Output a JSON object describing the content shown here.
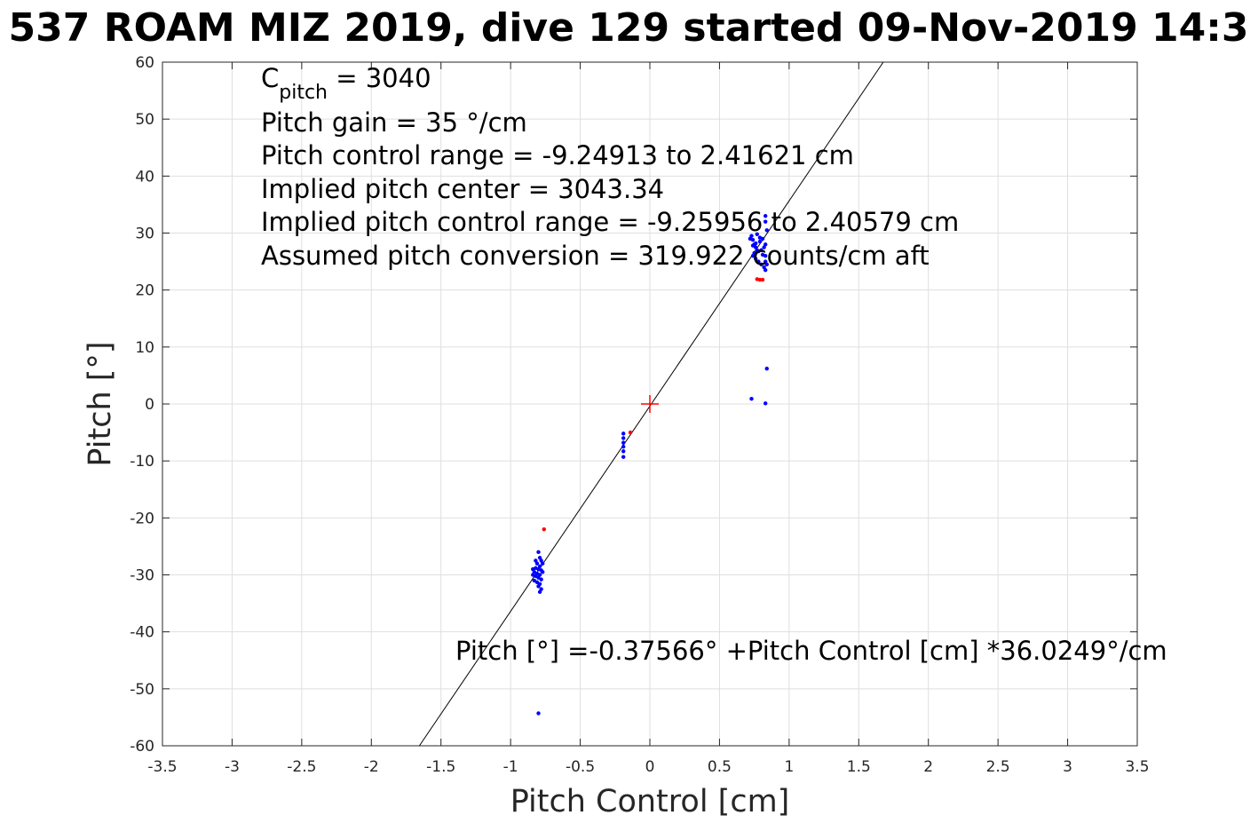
{
  "chart_data": {
    "type": "scatter",
    "title": "537 ROAM MIZ 2019, dive 129 started 09-Nov-2019 14:3",
    "xlabel": "Pitch Control [cm]",
    "ylabel": "Pitch [°]",
    "xlim": [
      -3.5,
      3.5
    ],
    "ylim": [
      -60,
      60
    ],
    "xticks": [
      -3.5,
      -3,
      -2.5,
      -2,
      -1.5,
      -1,
      -0.5,
      0,
      0.5,
      1,
      1.5,
      2,
      2.5,
      3,
      3.5
    ],
    "yticks": [
      -60,
      -50,
      -40,
      -30,
      -20,
      -10,
      0,
      10,
      20,
      30,
      40,
      50,
      60
    ],
    "grid": true,
    "colors": {
      "good": "#0000ff",
      "flagged": "#ff0000",
      "fit": "#000000",
      "center": "#ff0000"
    },
    "annotations": {
      "c_pitch_symbol": "C",
      "c_pitch_subscript": "pitch",
      "c_pitch_value": " = 3040",
      "lines": [
        "Pitch gain = 35 °/cm",
        "Pitch control range = -9.24913 to 2.41621 cm",
        "Implied pitch center = 3043.34",
        "Implied pitch control range = -9.25956 to 2.40579 cm",
        "Assumed pitch conversion = 319.922 counts/cm aft"
      ],
      "fit_equation": "Pitch [°] =-0.37566° +Pitch Control [cm] *36.0249°/cm"
    },
    "fit_line": {
      "intercept": -0.37566,
      "slope": 36.0249
    },
    "center_marker": {
      "x": 0,
      "y": 0
    },
    "series": [
      {
        "color": "#0000ff",
        "points": [
          [
            -0.8,
            -26.0
          ],
          [
            -0.79,
            -27.0
          ],
          [
            -0.78,
            -27.5
          ],
          [
            -0.81,
            -28.0
          ],
          [
            -0.79,
            -28.5
          ],
          [
            -0.82,
            -28.8
          ],
          [
            -0.8,
            -29.0
          ],
          [
            -0.78,
            -29.2
          ],
          [
            -0.83,
            -29.5
          ],
          [
            -0.81,
            -29.8
          ],
          [
            -0.79,
            -30.0
          ],
          [
            -0.82,
            -30.2
          ],
          [
            -0.8,
            -30.5
          ],
          [
            -0.78,
            -30.8
          ],
          [
            -0.83,
            -31.0
          ],
          [
            -0.81,
            -31.3
          ],
          [
            -0.79,
            -31.6
          ],
          [
            -0.8,
            -32.0
          ],
          [
            -0.78,
            -32.5
          ],
          [
            -0.79,
            -33.0
          ],
          [
            -0.84,
            -29.0
          ],
          [
            -0.84,
            -30.0
          ],
          [
            -0.77,
            -28.0
          ],
          [
            -0.77,
            -29.5
          ],
          [
            -0.82,
            -27.5
          ],
          [
            -0.8,
            -54.3
          ],
          [
            -0.19,
            -5.2
          ],
          [
            -0.19,
            -6.0
          ],
          [
            -0.19,
            -6.8
          ],
          [
            -0.19,
            -7.5
          ],
          [
            -0.19,
            -8.3
          ],
          [
            -0.19,
            -9.3
          ],
          [
            0.73,
            29.5
          ],
          [
            0.74,
            28.8
          ],
          [
            0.75,
            28.0
          ],
          [
            0.76,
            27.5
          ],
          [
            0.77,
            27.0
          ],
          [
            0.75,
            26.5
          ],
          [
            0.74,
            26.0
          ],
          [
            0.76,
            25.5
          ],
          [
            0.78,
            25.0
          ],
          [
            0.8,
            24.5
          ],
          [
            0.82,
            24.0
          ],
          [
            0.83,
            23.5
          ],
          [
            0.81,
            29.0
          ],
          [
            0.79,
            28.5
          ],
          [
            0.83,
            28.0
          ],
          [
            0.82,
            27.5
          ],
          [
            0.8,
            27.0
          ],
          [
            0.78,
            26.8
          ],
          [
            0.77,
            29.8
          ],
          [
            0.79,
            29.2
          ],
          [
            0.81,
            26.2
          ],
          [
            0.76,
            28.2
          ],
          [
            0.74,
            27.8
          ],
          [
            0.83,
            26.0
          ],
          [
            0.84,
            30.5
          ],
          [
            0.83,
            33.0
          ],
          [
            0.83,
            32.0
          ],
          [
            0.83,
            25.0
          ],
          [
            0.84,
            24.5
          ],
          [
            0.72,
            29.0
          ],
          [
            0.84,
            6.2
          ],
          [
            0.73,
            0.9
          ],
          [
            0.83,
            0.1
          ]
        ]
      },
      {
        "color": "#ff0000",
        "points": [
          [
            -0.76,
            -22.0
          ],
          [
            -0.14,
            -5.0
          ],
          [
            0.79,
            21.8
          ],
          [
            0.81,
            21.8
          ],
          [
            0.77,
            21.9
          ]
        ]
      }
    ]
  }
}
